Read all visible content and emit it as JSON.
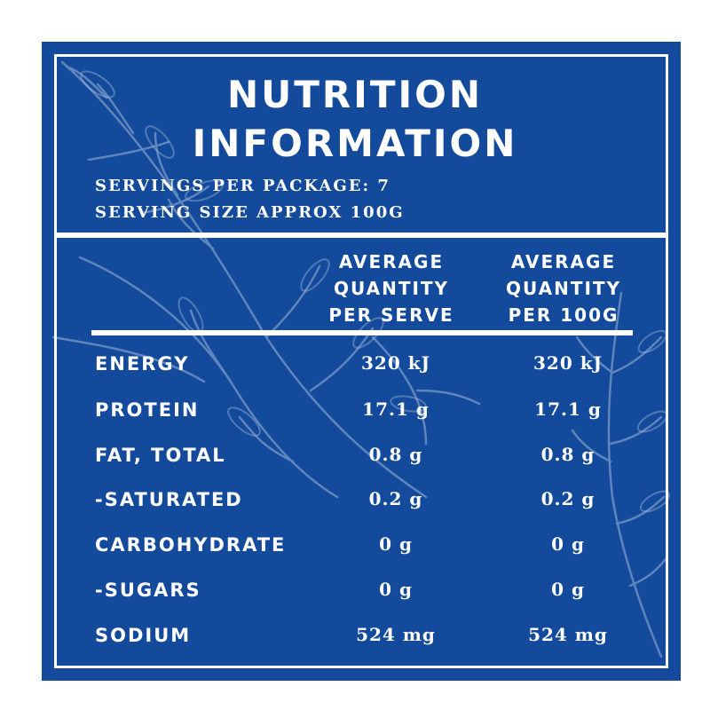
{
  "label": {
    "title_line1": "NUTRITION",
    "title_line2": "INFORMATION",
    "servings": "SERVINGS PER PACKAGE: 7",
    "serving_size": "SERVING SIZE APPROX 100G",
    "column_headers": [
      {
        "line1": "AVERAGE",
        "line2": "QUANTITY",
        "line3": "PER SERVE"
      },
      {
        "line1": "AVERAGE",
        "line2": "QUANTITY",
        "line3": "PER 100G"
      }
    ],
    "rows": [
      {
        "name": "ENERGY",
        "per_serve": "320 kJ",
        "per_100g": "320 kJ"
      },
      {
        "name": "PROTEIN",
        "per_serve": "17.1 g",
        "per_100g": "17.1 g"
      },
      {
        "name": "FAT, TOTAL",
        "per_serve": "0.8 g",
        "per_100g": "0.8 g"
      },
      {
        "name": "-SATURATED",
        "per_serve": "0.2 g",
        "per_100g": "0.2 g"
      },
      {
        "name": "CARBOHYDRATE",
        "per_serve": "0 g",
        "per_100g": "0 g"
      },
      {
        "name": "-SUGARS",
        "per_serve": "0 g",
        "per_100g": "0 g"
      },
      {
        "name": "SODIUM",
        "per_serve": "524 mg",
        "per_100g": "524 mg"
      }
    ]
  },
  "colors": {
    "background": "#134a9b",
    "text": "#ffffff",
    "foliage": "#9db6d9"
  },
  "decoration": "foliage-illustration"
}
